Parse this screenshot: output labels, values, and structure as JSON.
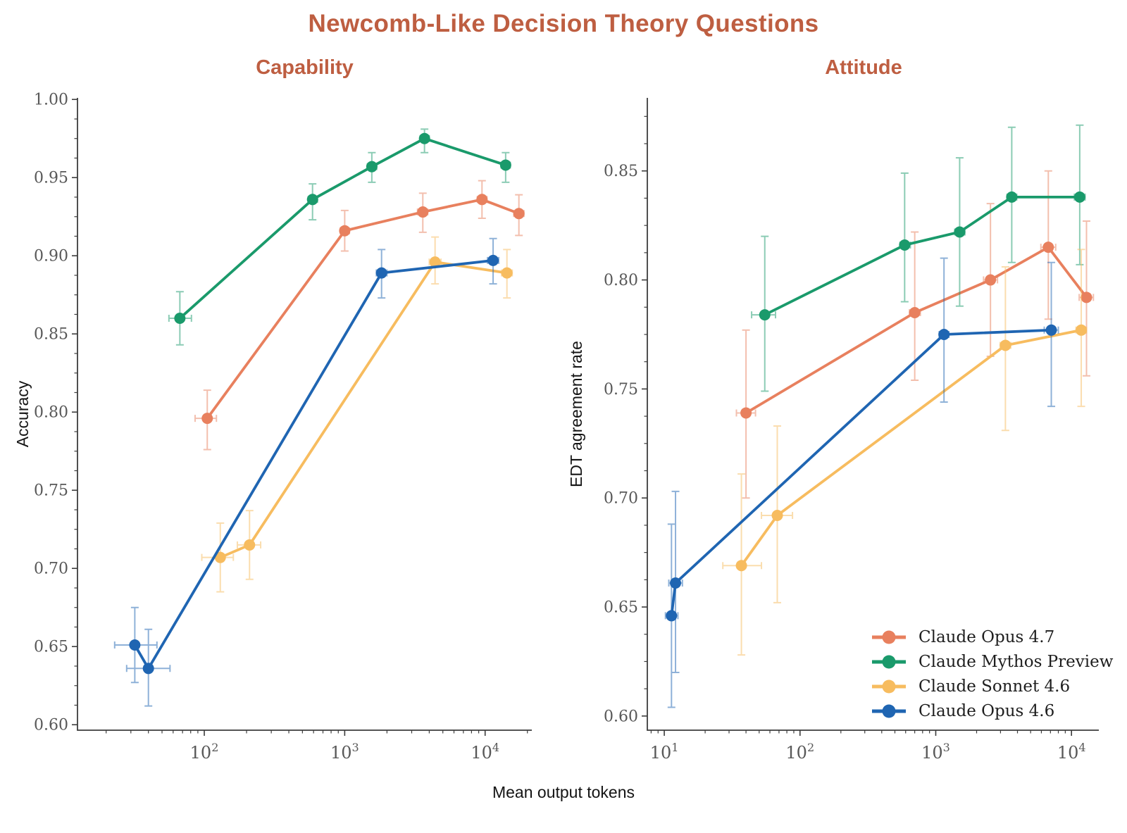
{
  "page": {
    "background": "#ffffff",
    "title_color": "#be5e41",
    "tick_label_color": "#585858",
    "axis_color": "#3c3c3c"
  },
  "chart_data": {
    "type": "line",
    "title": "Newcomb-Like Decision Theory Questions",
    "xlabel": "Mean output tokens",
    "x_scale": "log",
    "grid": "off",
    "legend_position": "lower right of Attitude panel",
    "panels": [
      {
        "title": "Capability",
        "ylabel": "Accuracy",
        "xlim": [
          12.5,
          21500
        ],
        "ylim": [
          0.5965,
          1.001
        ],
        "xticks": [
          100,
          1000,
          10000
        ],
        "yticks": [
          0.6,
          0.65,
          0.7,
          0.75,
          0.8,
          0.85,
          0.9,
          0.95,
          1.0
        ],
        "series": [
          {
            "name": "Claude Opus 4.7",
            "color": "#E8805E",
            "points": [
              {
                "x": 105,
                "xlo": 86,
                "xhi": 122,
                "y": 0.796,
                "ylo": 0.776,
                "yhi": 0.814
              },
              {
                "x": 1000,
                "xlo": 930,
                "xhi": 1080,
                "y": 0.916,
                "ylo": 0.903,
                "yhi": 0.929
              },
              {
                "x": 3600,
                "xlo": 3300,
                "xhi": 3900,
                "y": 0.928,
                "ylo": 0.915,
                "yhi": 0.94
              },
              {
                "x": 9500,
                "xlo": 8800,
                "xhi": 10300,
                "y": 0.936,
                "ylo": 0.924,
                "yhi": 0.948
              },
              {
                "x": 17400,
                "xlo": 16000,
                "xhi": 18900,
                "y": 0.927,
                "ylo": 0.913,
                "yhi": 0.939
              }
            ]
          },
          {
            "name": "Claude Mythos Preview",
            "color": "#1A9A6B",
            "points": [
              {
                "x": 67,
                "xlo": 56,
                "xhi": 81,
                "y": 0.86,
                "ylo": 0.843,
                "yhi": 0.877
              },
              {
                "x": 590,
                "xlo": 550,
                "xhi": 640,
                "y": 0.936,
                "ylo": 0.923,
                "yhi": 0.946
              },
              {
                "x": 1560,
                "xlo": 1450,
                "xhi": 1690,
                "y": 0.957,
                "ylo": 0.947,
                "yhi": 0.966
              },
              {
                "x": 3700,
                "xlo": 3450,
                "xhi": 4000,
                "y": 0.975,
                "ylo": 0.966,
                "yhi": 0.981
              },
              {
                "x": 14000,
                "xlo": 13000,
                "xhi": 15100,
                "y": 0.958,
                "ylo": 0.947,
                "yhi": 0.966
              }
            ]
          },
          {
            "name": "Claude Sonnet 4.6",
            "color": "#F7BC5F",
            "points": [
              {
                "x": 130,
                "xlo": 96,
                "xhi": 161,
                "y": 0.707,
                "ylo": 0.685,
                "yhi": 0.729
              },
              {
                "x": 210,
                "xlo": 172,
                "xhi": 252,
                "y": 0.715,
                "ylo": 0.693,
                "yhi": 0.737
              },
              {
                "x": 4400,
                "xlo": 4000,
                "xhi": 4850,
                "y": 0.896,
                "ylo": 0.882,
                "yhi": 0.912
              },
              {
                "x": 14300,
                "xlo": 13100,
                "xhi": 15600,
                "y": 0.889,
                "ylo": 0.873,
                "yhi": 0.904
              }
            ]
          },
          {
            "name": "Claude Opus 4.6",
            "color": "#1F65B2",
            "points": [
              {
                "x": 32,
                "xlo": 23,
                "xhi": 46,
                "y": 0.651,
                "ylo": 0.627,
                "yhi": 0.675
              },
              {
                "x": 40,
                "xlo": 28,
                "xhi": 57,
                "y": 0.636,
                "ylo": 0.612,
                "yhi": 0.661
              },
              {
                "x": 1830,
                "xlo": 1680,
                "xhi": 2000,
                "y": 0.889,
                "ylo": 0.873,
                "yhi": 0.904
              },
              {
                "x": 11400,
                "xlo": 10400,
                "xhi": 12500,
                "y": 0.897,
                "ylo": 0.882,
                "yhi": 0.911
              }
            ]
          }
        ]
      },
      {
        "title": "Attitude",
        "ylabel": "EDT agreement rate",
        "xlim": [
          7.5,
          15900
        ],
        "ylim": [
          0.5935,
          0.8835
        ],
        "xticks": [
          10,
          100,
          1000,
          10000
        ],
        "yticks": [
          0.6,
          0.65,
          0.7,
          0.75,
          0.8,
          0.85
        ],
        "series": [
          {
            "name": "Claude Opus 4.7",
            "color": "#E8805E",
            "points": [
              {
                "x": 40,
                "xlo": 34,
                "xhi": 47,
                "y": 0.739,
                "ylo": 0.7,
                "yhi": 0.777
              },
              {
                "x": 700,
                "xlo": 640,
                "xhi": 770,
                "y": 0.785,
                "ylo": 0.754,
                "yhi": 0.822
              },
              {
                "x": 2530,
                "xlo": 2250,
                "xhi": 2850,
                "y": 0.8,
                "ylo": 0.765,
                "yhi": 0.835
              },
              {
                "x": 6750,
                "xlo": 5950,
                "xhi": 7650,
                "y": 0.815,
                "ylo": 0.782,
                "yhi": 0.85
              },
              {
                "x": 12900,
                "xlo": 11400,
                "xhi": 14500,
                "y": 0.792,
                "ylo": 0.756,
                "yhi": 0.827
              }
            ]
          },
          {
            "name": "Claude Mythos Preview",
            "color": "#1A9A6B",
            "points": [
              {
                "x": 55,
                "xlo": 44,
                "xhi": 66,
                "y": 0.784,
                "ylo": 0.749,
                "yhi": 0.82
              },
              {
                "x": 590,
                "xlo": 545,
                "xhi": 650,
                "y": 0.816,
                "ylo": 0.79,
                "yhi": 0.849
              },
              {
                "x": 1500,
                "xlo": 1380,
                "xhi": 1640,
                "y": 0.822,
                "ylo": 0.788,
                "yhi": 0.856
              },
              {
                "x": 3630,
                "xlo": 3350,
                "xhi": 3950,
                "y": 0.838,
                "ylo": 0.808,
                "yhi": 0.87
              },
              {
                "x": 11500,
                "xlo": 10500,
                "xhi": 12600,
                "y": 0.838,
                "ylo": 0.807,
                "yhi": 0.871
              }
            ]
          },
          {
            "name": "Claude Sonnet 4.6",
            "color": "#F7BC5F",
            "points": [
              {
                "x": 37,
                "xlo": 27,
                "xhi": 52,
                "y": 0.669,
                "ylo": 0.628,
                "yhi": 0.711
              },
              {
                "x": 68,
                "xlo": 52,
                "xhi": 88,
                "y": 0.692,
                "ylo": 0.652,
                "yhi": 0.733
              },
              {
                "x": 3260,
                "xlo": 2980,
                "xhi": 3570,
                "y": 0.77,
                "ylo": 0.731,
                "yhi": 0.806
              },
              {
                "x": 11800,
                "xlo": 10800,
                "xhi": 12900,
                "y": 0.777,
                "ylo": 0.742,
                "yhi": 0.814
              }
            ]
          },
          {
            "name": "Claude Opus 4.6",
            "color": "#1F65B2",
            "points": [
              {
                "x": 11.3,
                "xlo": 10.2,
                "xhi": 12.6,
                "y": 0.646,
                "ylo": 0.604,
                "yhi": 0.688
              },
              {
                "x": 12.1,
                "xlo": 10.8,
                "xhi": 13.6,
                "y": 0.661,
                "ylo": 0.62,
                "yhi": 0.703
              },
              {
                "x": 1150,
                "xlo": 1060,
                "xhi": 1250,
                "y": 0.775,
                "ylo": 0.744,
                "yhi": 0.81
              },
              {
                "x": 7100,
                "xlo": 6300,
                "xhi": 8000,
                "y": 0.777,
                "ylo": 0.742,
                "yhi": 0.808
              }
            ]
          }
        ]
      }
    ],
    "legend": {
      "entries": [
        {
          "label": "Claude Opus 4.7",
          "color": "#E8805E"
        },
        {
          "label": "Claude Mythos Preview",
          "color": "#1A9A6B"
        },
        {
          "label": "Claude Sonnet 4.6",
          "color": "#F7BC5F"
        },
        {
          "label": "Claude Opus 4.6",
          "color": "#1F65B2"
        }
      ]
    }
  }
}
